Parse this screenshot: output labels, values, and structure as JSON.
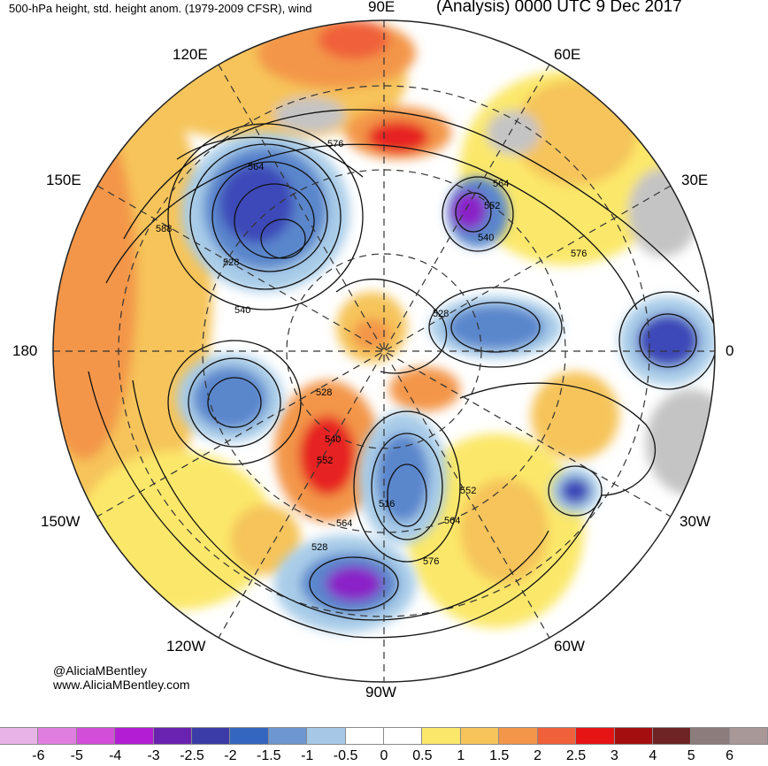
{
  "header": {
    "title_left": "500-hPa height, std. height anom. (1979-2009 CFSR), wind",
    "title_right": "(Analysis) 0000 UTC 9 Dec 2017"
  },
  "longitude_labels": {
    "lon_90e": "90E",
    "lon_60e": "60E",
    "lon_120e": "120E",
    "lon_30e": "30E",
    "lon_150e": "150E",
    "lon_180": "180",
    "lon_0": "0",
    "lon_150w": "150W",
    "lon_30w": "30W",
    "lon_120w": "120W",
    "lon_60w": "60W",
    "lon_90w": "90W"
  },
  "contour_labels": [
    "576",
    "564",
    "552",
    "540",
    "564",
    "588",
    "528",
    "540",
    "576",
    "528",
    "528",
    "540",
    "552",
    "516",
    "564",
    "552",
    "528",
    "564",
    "576"
  ],
  "credit": {
    "twitter": "@AliciaMBentley",
    "website": "www.AliciaMBentley.com"
  },
  "colorbar": {
    "colors": [
      "#e8b4e8",
      "#e07ee0",
      "#d24ed8",
      "#b31ed4",
      "#6a22b0",
      "#3c3ca8",
      "#3466c0",
      "#6e96d0",
      "#a6c8e6",
      "#ffffff",
      "#ffffff",
      "#fbe86a",
      "#f6c45a",
      "#f3964a",
      "#f0603a",
      "#e61414",
      "#a50e0e",
      "#6e2424",
      "#8c7c7c",
      "#a89898"
    ],
    "ticks": [
      "-6",
      "-5",
      "-4",
      "-3",
      "-2.5",
      "-2",
      "-1.5",
      "-1",
      "-0.5",
      "0",
      "0.5",
      "1",
      "1.5",
      "2",
      "2.5",
      "3",
      "4",
      "5",
      "6"
    ]
  },
  "anomaly_palette": {
    "strong_neg": "#8a20c8",
    "neg2": "#3c48b8",
    "neg1": "#5a86cc",
    "neg05": "#a8cce8",
    "pos05": "#fbe86a",
    "pos1": "#f6c45a",
    "pos15": "#f3964a",
    "pos2": "#f0603a",
    "pos25": "#e62020",
    "land_gray": "#c4c4c4"
  }
}
